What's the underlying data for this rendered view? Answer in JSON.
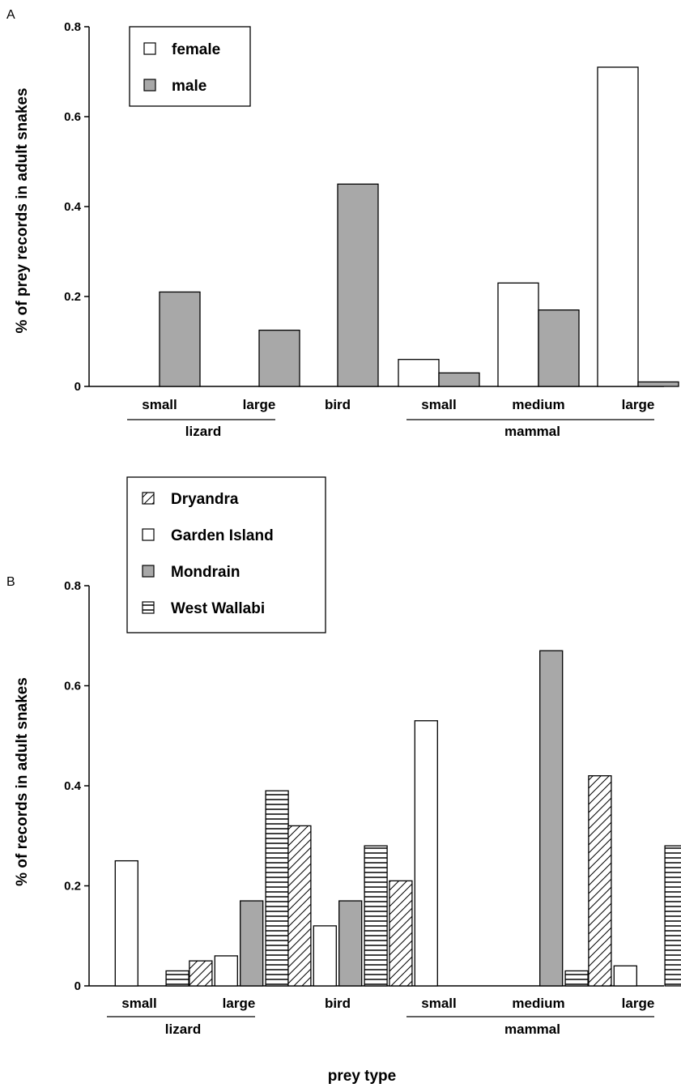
{
  "xlabel": "prey type",
  "chart_data": [
    {
      "type": "bar",
      "panel_label": "A",
      "ylabel": "% of prey records in adult snakes",
      "ylim": [
        0,
        0.8
      ],
      "yticks": [
        "0",
        "0.2",
        "0.4",
        "0.6",
        "0.8"
      ],
      "categories": [
        "small",
        "large",
        "bird",
        "small",
        "medium",
        "large"
      ],
      "groups": [
        {
          "label": "lizard",
          "categories": [
            0,
            1
          ]
        },
        {
          "label": "mammal",
          "categories": [
            3,
            4,
            5
          ]
        }
      ],
      "legend_position": "top-left",
      "series": [
        {
          "name": "female",
          "fill": "white",
          "values": [
            0,
            0,
            0,
            0.06,
            0.23,
            0.71
          ]
        },
        {
          "name": "male",
          "fill": "gray",
          "values": [
            0.21,
            0.125,
            0.45,
            0.03,
            0.17,
            0.01
          ]
        }
      ]
    },
    {
      "type": "bar",
      "panel_label": "B",
      "ylabel": "% of records in adult snakes",
      "ylim": [
        0,
        0.8
      ],
      "yticks": [
        "0",
        "0.2",
        "0.4",
        "0.6",
        "0.8"
      ],
      "categories": [
        "small",
        "large",
        "bird",
        "small",
        "medium",
        "large"
      ],
      "groups": [
        {
          "label": "lizard",
          "categories": [
            0,
            1
          ]
        },
        {
          "label": "mammal",
          "categories": [
            3,
            4,
            5
          ]
        }
      ],
      "legend_position": "top-left",
      "series": [
        {
          "name": "Dryandra",
          "fill": "diagonal",
          "values": [
            0,
            0.05,
            0.32,
            0.21,
            0,
            0.42
          ]
        },
        {
          "name": "Garden Island",
          "fill": "white",
          "values": [
            0.25,
            0.06,
            0.12,
            0.53,
            0,
            0.04
          ]
        },
        {
          "name": "Mondrain",
          "fill": "gray",
          "values": [
            0,
            0.17,
            0.17,
            0,
            0.67,
            0
          ]
        },
        {
          "name": "West Wallabi",
          "fill": "horizontal",
          "values": [
            0.03,
            0.39,
            0.28,
            0,
            0.03,
            0.28
          ]
        }
      ]
    }
  ],
  "colors": {
    "gray": "#a8a8a8",
    "stroke": "#000000"
  }
}
